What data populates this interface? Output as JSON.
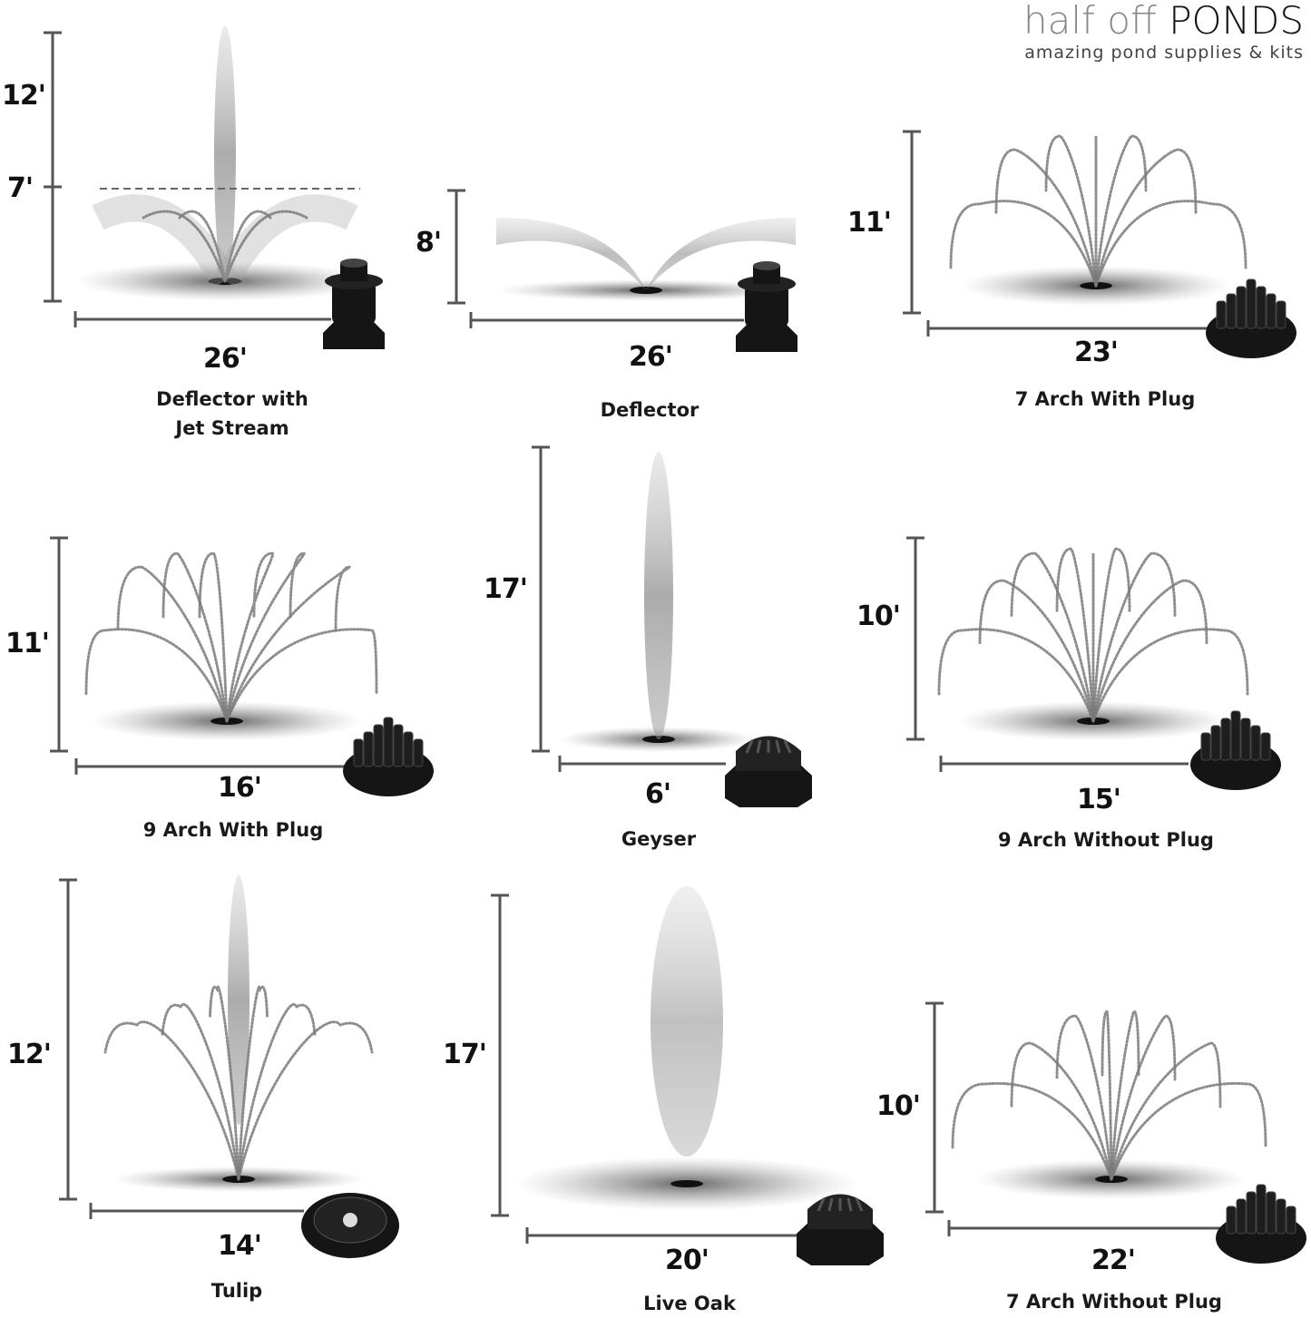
{
  "brand": {
    "name_light": "half off",
    "name_bold": "PONDS",
    "tagline": "amazing pond supplies & kits"
  },
  "patterns": [
    {
      "name": "Deflector with Jet Stream",
      "name_lines": [
        "Deflector with",
        "Jet Stream"
      ],
      "height_labels": [
        "12'",
        "7'"
      ],
      "width_label": "26'",
      "style": "jet-deflector",
      "nozzle_icon": "deflector-nozzle-icon"
    },
    {
      "name": "Deflector",
      "name_lines": [
        "Deflector"
      ],
      "height_labels": [
        "8'"
      ],
      "width_label": "26'",
      "style": "deflector",
      "nozzle_icon": "deflector-nozzle-icon"
    },
    {
      "name": "7 Arch With Plug",
      "name_lines": [
        "7 Arch With Plug"
      ],
      "height_labels": [
        "11'"
      ],
      "width_label": "23'",
      "style": "arch",
      "nozzle_icon": "multi-jet-nozzle-icon"
    },
    {
      "name": "9 Arch With Plug",
      "name_lines": [
        "9 Arch With Plug"
      ],
      "height_labels": [
        "11'"
      ],
      "width_label": "16'",
      "style": "arch",
      "nozzle_icon": "multi-jet-nozzle-icon"
    },
    {
      "name": "Geyser",
      "name_lines": [
        "Geyser"
      ],
      "height_labels": [
        "17'"
      ],
      "width_label": "6'",
      "style": "geyser",
      "nozzle_icon": "geyser-nozzle-icon"
    },
    {
      "name": "9 Arch Without Plug",
      "name_lines": [
        "9 Arch Without Plug"
      ],
      "height_labels": [
        "10'"
      ],
      "width_label": "15'",
      "style": "arch",
      "nozzle_icon": "multi-jet-nozzle-icon"
    },
    {
      "name": "Tulip",
      "name_lines": [
        "Tulip"
      ],
      "height_labels": [
        "12'"
      ],
      "width_label": "14'",
      "style": "tulip",
      "nozzle_icon": "tulip-nozzle-icon"
    },
    {
      "name": "Live Oak",
      "name_lines": [
        "Live Oak"
      ],
      "height_labels": [
        "17'"
      ],
      "width_label": "20'",
      "style": "live-oak",
      "nozzle_icon": "live-oak-nozzle-icon"
    },
    {
      "name": "7 Arch Without Plug",
      "name_lines": [
        "7 Arch Without Plug"
      ],
      "height_labels": [
        "10'"
      ],
      "width_label": "22'",
      "style": "arch",
      "nozzle_icon": "multi-jet-nozzle-icon"
    }
  ],
  "colors": {
    "dimension_line": "#555555",
    "spray": "#7a7a7a",
    "nozzle": "#151515"
  }
}
